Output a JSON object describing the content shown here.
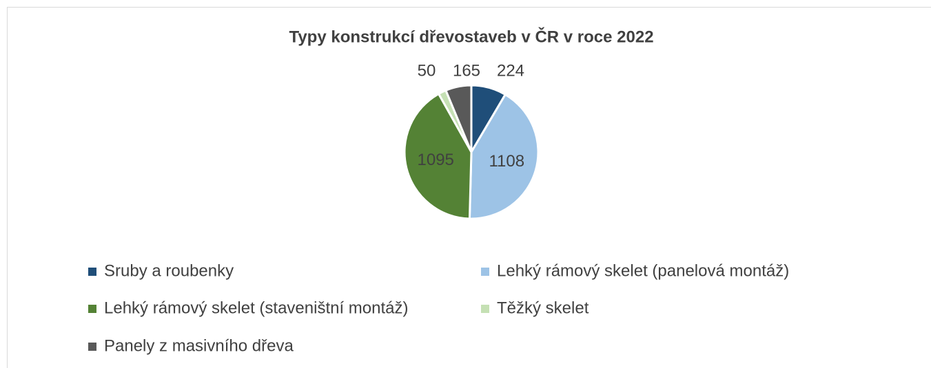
{
  "chart_data": {
    "type": "pie",
    "title": "Typy konstrukcí dřevostaveb v ČR v roce 2022",
    "categories": [
      "Sruby a roubenky",
      "Lehký rámový skelet (panelová montáž)",
      "Lehký rámový skelet (staveništní montáž)",
      "Těžký skelet",
      "Panely z masivního dřeva"
    ],
    "values": [
      224,
      1108,
      1095,
      50,
      165
    ],
    "colors": [
      "#1f4e79",
      "#9dc3e6",
      "#548235",
      "#c5e0b4",
      "#595959"
    ],
    "legend": "bottom"
  }
}
